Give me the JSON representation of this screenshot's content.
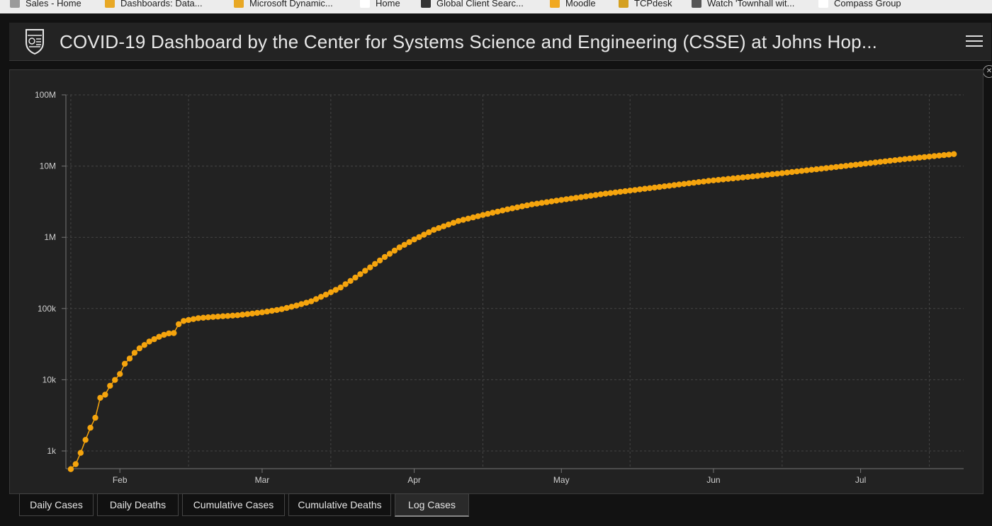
{
  "bookmarks": [
    {
      "label": "Sales - Home",
      "color": "#9a9a9a"
    },
    {
      "label": "Dashboards: Data...",
      "color": "#e8a825"
    },
    {
      "label": "Microsoft Dynamic...",
      "color": "#e8a825"
    },
    {
      "label": "Home",
      "color": "#ffffff"
    },
    {
      "label": "Global Client Searc...",
      "color": "#333333"
    },
    {
      "label": "Moodle",
      "color": "#f0a820"
    },
    {
      "label": "TCPdesk",
      "color": "#d4a020"
    },
    {
      "label": "Watch 'Townhall wit...",
      "color": "#555555"
    },
    {
      "label": "Compass Group",
      "color": "#ffffff"
    }
  ],
  "header": {
    "title": "COVID-19 Dashboard by the Center for Systems Science and Engineering (CSSE) at Johns Hop..."
  },
  "colors": {
    "series": "#f5a40d",
    "background": "#222222",
    "grid": "#444444"
  },
  "chart_data": {
    "type": "line",
    "title": "",
    "xlabel": "",
    "ylabel": "",
    "yscale": "log",
    "ylim": [
      1000,
      100000000
    ],
    "ytick_labels": [
      "1k",
      "10k",
      "100k",
      "1M",
      "10M",
      "100M"
    ],
    "ytick_values": [
      1000,
      10000,
      100000,
      1000000,
      10000000,
      100000000
    ],
    "xtick_labels": [
      "Feb",
      "Mar",
      "Apr",
      "May",
      "Jun",
      "Jul"
    ],
    "xtick_dates": [
      "2020-02-01",
      "2020-03-01",
      "2020-04-01",
      "2020-05-01",
      "2020-06-01",
      "2020-07-01"
    ],
    "grid": true,
    "series": [
      {
        "x_start": "2020-01-22",
        "x_end": "2020-07-20",
        "anchors": [
          [
            "2020-01-22",
            555
          ],
          [
            "2020-01-23",
            654
          ],
          [
            "2020-01-24",
            941
          ],
          [
            "2020-01-25",
            1434
          ],
          [
            "2020-01-26",
            2118
          ],
          [
            "2020-01-27",
            2927
          ],
          [
            "2020-01-28",
            5578
          ],
          [
            "2020-01-29",
            6166
          ],
          [
            "2020-01-30",
            8234
          ],
          [
            "2020-01-31",
            9927
          ],
          [
            "2020-02-01",
            12038
          ],
          [
            "2020-02-02",
            16787
          ],
          [
            "2020-02-03",
            19881
          ],
          [
            "2020-02-04",
            23892
          ],
          [
            "2020-02-05",
            27635
          ],
          [
            "2020-02-06",
            30794
          ],
          [
            "2020-02-07",
            34391
          ],
          [
            "2020-02-08",
            37120
          ],
          [
            "2020-02-09",
            40150
          ],
          [
            "2020-02-10",
            42762
          ],
          [
            "2020-02-11",
            44802
          ],
          [
            "2020-02-12",
            45221
          ],
          [
            "2020-02-13",
            60368
          ],
          [
            "2020-02-14",
            66885
          ],
          [
            "2020-02-15",
            69030
          ],
          [
            "2020-02-17",
            73332
          ],
          [
            "2020-02-20",
            76199
          ],
          [
            "2020-02-25",
            80400
          ],
          [
            "2020-03-01",
            88369
          ],
          [
            "2020-03-05",
            97886
          ],
          [
            "2020-03-08",
            109991
          ],
          [
            "2020-03-11",
            126214
          ],
          [
            "2020-03-14",
            156653
          ],
          [
            "2020-03-17",
            197142
          ],
          [
            "2020-03-20",
            272166
          ],
          [
            "2020-03-23",
            378287
          ],
          [
            "2020-03-26",
            529591
          ],
          [
            "2020-03-29",
            720117
          ],
          [
            "2020-04-01",
            932605
          ],
          [
            "2020-04-05",
            1272115
          ],
          [
            "2020-04-10",
            1691719
          ],
          [
            "2020-04-15",
            2056054
          ],
          [
            "2020-04-20",
            2472259
          ],
          [
            "2020-04-25",
            2896633
          ],
          [
            "2020-05-01",
            3349786
          ],
          [
            "2020-05-10",
            4101699
          ],
          [
            "2020-05-20",
            4996472
          ],
          [
            "2020-05-31",
            6193761
          ],
          [
            "2020-06-10",
            7273958
          ],
          [
            "2020-06-20",
            8708008
          ],
          [
            "2020-06-30",
            10449697
          ],
          [
            "2020-07-10",
            12552765
          ],
          [
            "2020-07-20",
            14714000
          ]
        ]
      }
    ]
  },
  "tabs": [
    {
      "label": "Daily Cases",
      "active": false
    },
    {
      "label": "Daily Deaths",
      "active": false
    },
    {
      "label": "Cumulative Cases",
      "active": false
    },
    {
      "label": "Cumulative Deaths",
      "active": false
    },
    {
      "label": "Log Cases",
      "active": true
    }
  ]
}
